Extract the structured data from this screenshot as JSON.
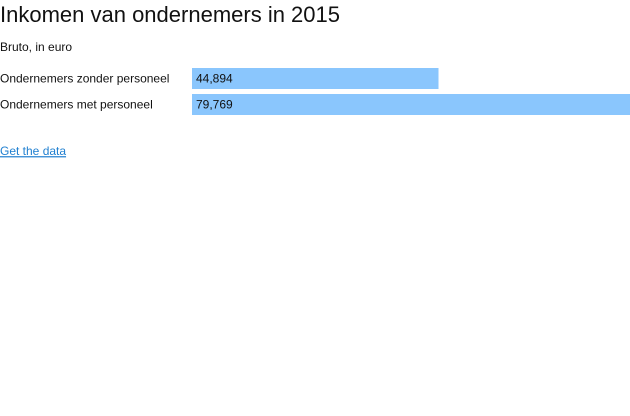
{
  "chart_data": {
    "type": "bar",
    "horizontal": true,
    "title": "Inkomen van ondernemers in 2015",
    "subtitle": "Bruto, in euro",
    "categories": [
      "Ondernemers zonder personeel",
      "Ondernemers met personeel"
    ],
    "values": [
      44894,
      79769
    ],
    "value_labels": [
      "44,894",
      "79,769"
    ],
    "color": "#8ac6fd"
  },
  "link": "Get the data"
}
